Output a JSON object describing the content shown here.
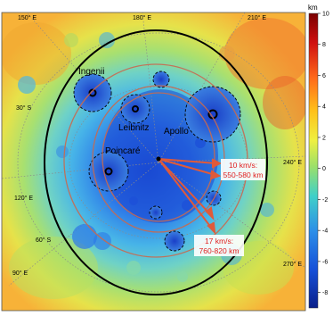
{
  "map": {
    "longitude_labels": [
      "150° E",
      "180° E",
      "210° E",
      "240° E",
      "270° E"
    ],
    "latitude_labels": [
      "30° S",
      "60° S",
      "90° E",
      "120° E"
    ],
    "basin_labels": [
      "Ingenii",
      "Leibnitz",
      "Apollo",
      "Poincaré"
    ],
    "annotations": [
      {
        "speed": "10 km/s:",
        "range": "550-580 km"
      },
      {
        "speed": "17 km/s:",
        "range": "760-820 km"
      }
    ]
  },
  "colorbar": {
    "unit": "km",
    "ticks": [
      "10",
      "8",
      "6",
      "4",
      "2",
      "0",
      "-2",
      "-4",
      "-6",
      "-8"
    ],
    "max": 10,
    "min": -9,
    "colors": [
      "#7a0000",
      "#d01010",
      "#ff6a1a",
      "#ffc01a",
      "#f0f040",
      "#9be06a",
      "#40d0c8",
      "#2c8ee8",
      "#1650d8",
      "#0a1f8a"
    ]
  },
  "colors": {
    "annotation_text": "#e02020",
    "impact_arrows": "#e05a3a",
    "basin_ring": "#000000",
    "inner_rings": "#c86a50"
  }
}
